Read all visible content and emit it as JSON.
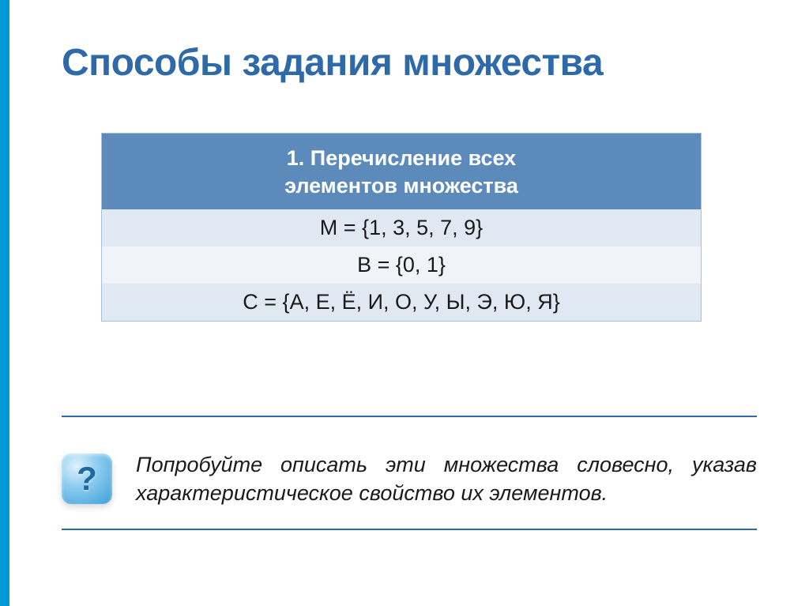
{
  "colors": {
    "accent_bar": "#0099d8",
    "title": "#2f6aa8",
    "table_header_bg": "#5c8bbb",
    "table_header_text": "#ffffff",
    "row_odd_bg": "#e0e9f2",
    "row_even_bg": "#f0f4f9",
    "row_text": "#1a1a1a",
    "divider": "#2f6aa8",
    "icon_gradient_light": "#e0f2ff",
    "icon_gradient_mid": "#8ecdf0",
    "icon_gradient_dark": "#3a9fd6",
    "icon_glyph": "#1d6aa3"
  },
  "title": "Способы задания множества",
  "table": {
    "header_line1": "1. Перечисление всех",
    "header_line2": "элементов множества",
    "rows": [
      "M = {1, 3, 5, 7, 9}",
      "B = {0, 1}",
      "C = {А, Е, Ё, И, О, У, Ы, Э, Ю, Я}"
    ]
  },
  "question": {
    "icon_glyph": "?",
    "text": "Попробуйте описать эти множества словесно, указав характеристическое свойство их элементов."
  },
  "typography": {
    "title_fontsize": 48,
    "body_fontsize": 27,
    "icon_fontsize": 42
  }
}
